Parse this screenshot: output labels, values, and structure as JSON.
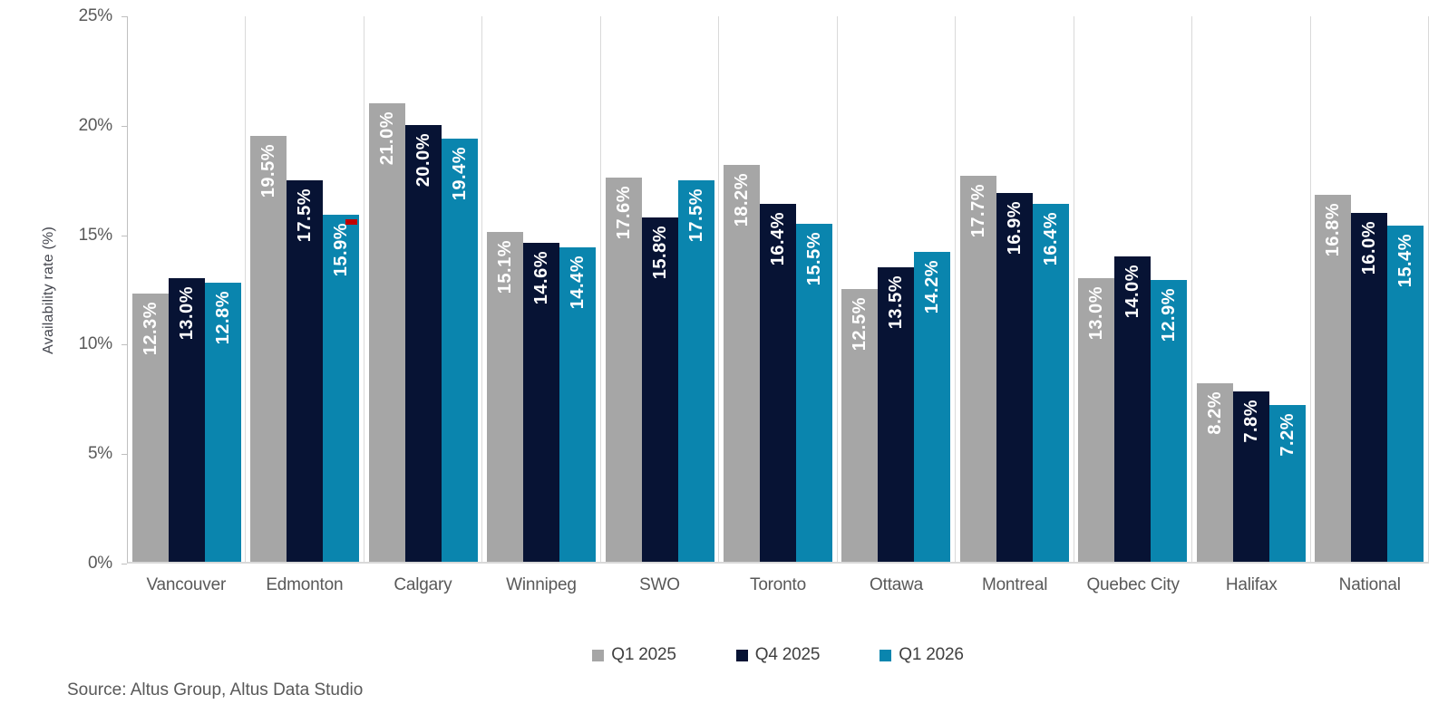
{
  "chart_data": {
    "type": "bar",
    "title": "",
    "xlabel": "",
    "ylabel": "Availability rate (%)",
    "ylim": [
      0,
      25
    ],
    "ytick_step": 5,
    "yticks": [
      "0%",
      "5%",
      "10%",
      "15%",
      "20%",
      "25%"
    ],
    "grid": "vertical category separators only, no horizontal gridlines",
    "legend_position": "bottom-center",
    "label_format": "one decimal place with percent sign, rotated 90deg, white, inside top of bar",
    "categories": [
      "Vancouver",
      "Edmonton",
      "Calgary",
      "Winnipeg",
      "SWO",
      "Toronto",
      "Ottawa",
      "Montreal",
      "Quebec City",
      "Halifax",
      "National"
    ],
    "series": [
      {
        "name": "Q1 2025",
        "color": "#a6a6a6",
        "values": [
          12.3,
          19.5,
          21.0,
          15.1,
          17.6,
          18.2,
          12.5,
          17.7,
          13.0,
          8.2,
          16.8
        ]
      },
      {
        "name": "Q4 2025",
        "color": "#071334",
        "values": [
          13.0,
          17.5,
          20.0,
          14.6,
          15.8,
          16.4,
          13.5,
          16.9,
          14.0,
          7.8,
          16.0
        ]
      },
      {
        "name": "Q1 2026",
        "color": "#0a85ae",
        "values": [
          12.8,
          15.9,
          19.4,
          14.4,
          17.5,
          15.5,
          14.2,
          16.4,
          12.9,
          7.2,
          15.4
        ]
      }
    ],
    "annotation": {
      "category": "Edmonton",
      "series": "Q1 2026",
      "shape": "small-red-rectangle-at-bar-top-right",
      "color": "#c00000"
    },
    "axis_colors": {
      "axis_line": "#bfbfbf",
      "separator_line": "#d9d9d9",
      "tick_text": "#595959"
    }
  },
  "source_note": "Source: Altus Group, Altus Data Studio"
}
